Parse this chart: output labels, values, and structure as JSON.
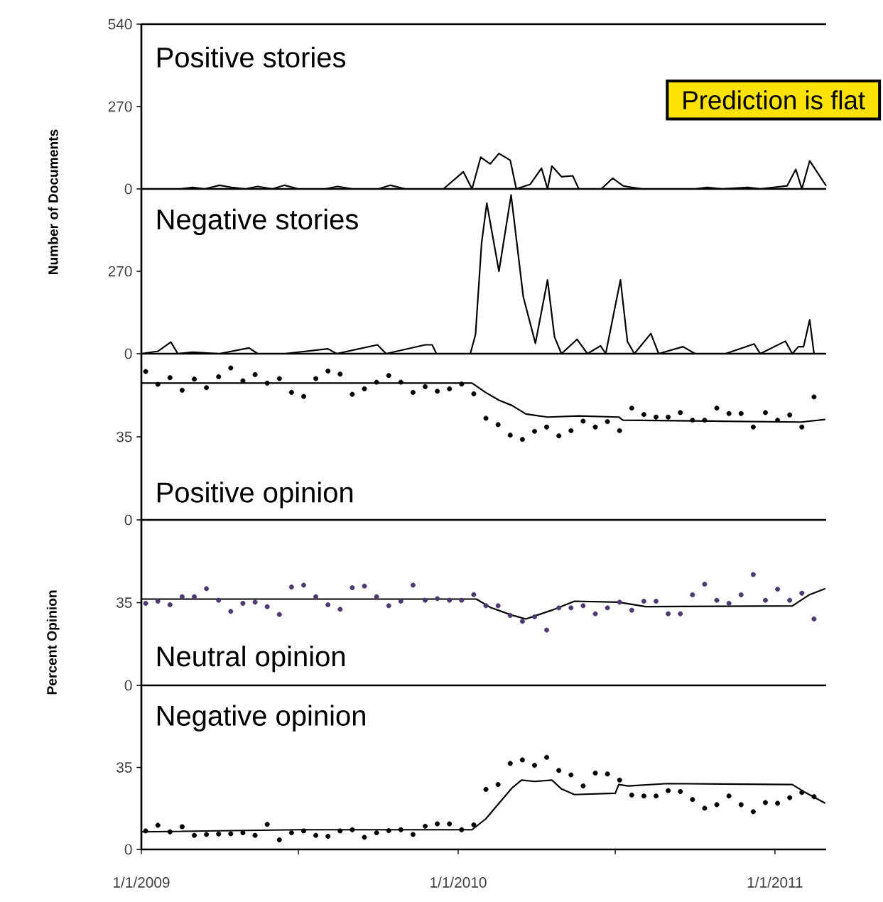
{
  "chart_data": [
    {
      "type": "line",
      "title": "Positive stories",
      "ylabel": "Number of Documents",
      "xlim": [
        "2009-01-01",
        "2011-03-01"
      ],
      "ylim": [
        0,
        540
      ],
      "yticks": [
        0,
        270,
        540
      ],
      "tick_labels": "y",
      "annotations": [
        "Prediction is flat"
      ],
      "series": [
        {
          "color": "#000000",
          "x": [
            "2009-01-01",
            "2009-02-15",
            "2009-03-01",
            "2009-03-15",
            "2009-04-01",
            "2009-04-15",
            "2009-05-01",
            "2009-05-15",
            "2009-06-01",
            "2009-06-15",
            "2009-07-01",
            "2009-08-01",
            "2009-08-15",
            "2009-09-01",
            "2009-10-01",
            "2009-10-15",
            "2009-11-01",
            "2009-12-15",
            "2010-01-07",
            "2010-01-17",
            "2010-01-27",
            "2010-02-07",
            "2010-02-17",
            "2010-03-02",
            "2010-03-09",
            "2010-03-25",
            "2010-04-07",
            "2010-04-14",
            "2010-04-19",
            "2010-04-30",
            "2010-05-13",
            "2010-05-20",
            "2010-06-15",
            "2010-06-28",
            "2010-07-10",
            "2010-07-20",
            "2010-08-01",
            "2010-10-01",
            "2010-10-15",
            "2010-11-01",
            "2010-12-01",
            "2010-12-15",
            "2011-01-15",
            "2011-01-25",
            "2011-02-01",
            "2011-02-10",
            "2011-03-01"
          ],
          "values": [
            0,
            0,
            5,
            0,
            12,
            5,
            0,
            8,
            0,
            12,
            0,
            0,
            8,
            0,
            0,
            12,
            0,
            0,
            56,
            0,
            104,
            82,
            116,
            94,
            0,
            15,
            68,
            0,
            75,
            40,
            43,
            0,
            0,
            35,
            10,
            5,
            0,
            0,
            5,
            0,
            5,
            0,
            10,
            64,
            0,
            92,
            10
          ]
        }
      ]
    },
    {
      "type": "line",
      "title": "Negative stories",
      "xlim": [
        "2009-01-01",
        "2011-03-01"
      ],
      "ylim": [
        0,
        540
      ],
      "yticks": [
        0,
        270
      ],
      "tick_labels": "y",
      "series": [
        {
          "color": "#000000",
          "x": [
            "2009-01-01",
            "2009-01-20",
            "2009-02-04",
            "2009-02-12",
            "2009-03-01",
            "2009-04-01",
            "2009-05-05",
            "2009-05-15",
            "2009-06-15",
            "2009-08-04",
            "2009-08-14",
            "2009-09-30",
            "2009-10-10",
            "2009-11-24",
            "2009-12-02",
            "2009-12-07",
            "2010-01-15",
            "2010-01-21",
            "2010-01-28",
            "2010-02-03",
            "2010-02-17",
            "2010-03-03",
            "2010-03-17",
            "2010-03-31",
            "2010-04-14",
            "2010-04-22",
            "2010-04-30",
            "2010-05-18",
            "2010-05-30",
            "2010-06-14",
            "2010-06-20",
            "2010-07-07",
            "2010-07-15",
            "2010-07-23",
            "2010-08-11",
            "2010-08-20",
            "2010-09-17",
            "2010-10-01",
            "2010-11-05",
            "2010-12-08",
            "2010-12-15",
            "2011-01-13",
            "2011-01-21",
            "2011-01-28",
            "2011-02-03",
            "2011-02-10",
            "2011-02-15",
            "2011-03-01"
          ],
          "values": [
            0,
            8,
            38,
            0,
            5,
            0,
            19,
            0,
            0,
            16,
            0,
            29,
            0,
            29,
            29,
            0,
            0,
            63,
            362,
            493,
            270,
            520,
            187,
            34,
            242,
            55,
            0,
            47,
            0,
            26,
            0,
            242,
            40,
            0,
            66,
            0,
            23,
            0,
            0,
            32,
            0,
            41,
            0,
            23,
            23,
            111,
            0,
            0
          ]
        }
      ]
    },
    {
      "type": "scatter",
      "title": "Positive opinion",
      "xlim": [
        "2009-01-01",
        "2011-03-01"
      ],
      "ylim": [
        0,
        70
      ],
      "yticks": [
        0,
        35
      ],
      "tick_labels": "y",
      "x": [
        "2009-01-06",
        "2009-01-20",
        "2009-02-03",
        "2009-02-17",
        "2009-03-03",
        "2009-03-17",
        "2009-03-31",
        "2009-04-14",
        "2009-04-28",
        "2009-05-12",
        "2009-05-26",
        "2009-06-09",
        "2009-06-23",
        "2009-07-07",
        "2009-07-21",
        "2009-08-04",
        "2009-08-18",
        "2009-09-01",
        "2009-09-15",
        "2009-09-29",
        "2009-10-13",
        "2009-10-27",
        "2009-11-10",
        "2009-11-24",
        "2009-12-08",
        "2009-12-22",
        "2010-01-05",
        "2010-01-19",
        "2010-02-02",
        "2010-02-16",
        "2010-03-02",
        "2010-03-16",
        "2010-03-30",
        "2010-04-13",
        "2010-04-27",
        "2010-05-11",
        "2010-05-25",
        "2010-06-08",
        "2010-06-22",
        "2010-07-06",
        "2010-07-20",
        "2010-08-03",
        "2010-08-17",
        "2010-08-31",
        "2010-09-14",
        "2010-09-28",
        "2010-10-12",
        "2010-10-26",
        "2010-11-09",
        "2010-11-23",
        "2010-12-07",
        "2010-12-21",
        "2011-01-04",
        "2011-01-18",
        "2011-02-01",
        "2011-02-15"
      ],
      "series": [
        {
          "type": "line",
          "color": "#000000",
          "x": [
            "2009-01-01",
            "2010-01-17",
            "2010-02-02",
            "2010-02-17",
            "2010-03-04",
            "2010-03-20",
            "2010-04-14",
            "2010-05-20",
            "2010-07-05",
            "2010-07-10",
            "2010-10-21",
            "2011-01-31",
            "2011-02-28"
          ],
          "values": [
            57.6,
            57.6,
            53.6,
            50.4,
            48.2,
            44.6,
            43.3,
            43.8,
            43.3,
            42.0,
            41.6,
            41.2,
            42.3
          ]
        },
        {
          "type": "scatter",
          "color": "#000000",
          "values": [
            62.5,
            57.1,
            59.9,
            54.6,
            59.3,
            55.7,
            60.3,
            64.0,
            58.6,
            61.2,
            57.6,
            59.5,
            53.7,
            52.0,
            59.5,
            62.7,
            61.4,
            52.9,
            55.2,
            58.0,
            60.8,
            58.0,
            53.7,
            56.1,
            54.2,
            55.2,
            57.2,
            53.1,
            42.8,
            40.1,
            35.7,
            33.9,
            37.3,
            39.1,
            35.4,
            37.6,
            41.6,
            39.1,
            41.4,
            37.6,
            47.1,
            44.4,
            43.3,
            43.3,
            45.2,
            42.0,
            42.0,
            47.1,
            44.8,
            44.8,
            39.1,
            45.2,
            42.0,
            44.2,
            39.1,
            51.8
          ]
        }
      ]
    },
    {
      "type": "scatter",
      "title": "Neutral opinion",
      "ylabel": "Percent Opinion",
      "xlim": [
        "2009-01-01",
        "2011-03-01"
      ],
      "ylim": [
        0,
        70
      ],
      "yticks": [
        0,
        35
      ],
      "tick_labels": "y",
      "x": [
        "2009-01-06",
        "2009-01-20",
        "2009-02-03",
        "2009-02-17",
        "2009-03-03",
        "2009-03-17",
        "2009-03-31",
        "2009-04-14",
        "2009-04-28",
        "2009-05-12",
        "2009-05-26",
        "2009-06-09",
        "2009-06-23",
        "2009-07-07",
        "2009-07-21",
        "2009-08-04",
        "2009-08-18",
        "2009-09-01",
        "2009-09-15",
        "2009-09-29",
        "2009-10-13",
        "2009-10-27",
        "2009-11-10",
        "2009-11-24",
        "2009-12-08",
        "2009-12-22",
        "2010-01-05",
        "2010-01-19",
        "2010-02-02",
        "2010-02-16",
        "2010-03-02",
        "2010-03-16",
        "2010-03-30",
        "2010-04-13",
        "2010-04-27",
        "2010-05-11",
        "2010-05-25",
        "2010-06-08",
        "2010-06-22",
        "2010-07-06",
        "2010-07-20",
        "2010-08-03",
        "2010-08-17",
        "2010-08-31",
        "2010-09-14",
        "2010-09-28",
        "2010-10-12",
        "2010-10-26",
        "2010-11-09",
        "2010-11-23",
        "2010-12-07",
        "2010-12-21",
        "2011-01-04",
        "2011-01-18",
        "2011-02-01",
        "2011-02-15"
      ],
      "series": [
        {
          "type": "line",
          "color": "#000000",
          "x": [
            "2009-01-01",
            "2010-01-22",
            "2010-02-07",
            "2010-03-04",
            "2010-03-20",
            "2010-04-19",
            "2010-05-15",
            "2010-07-05",
            "2010-08-05",
            "2011-01-21",
            "2011-02-10",
            "2011-02-28"
          ],
          "values": [
            36.5,
            36.5,
            33.0,
            29.7,
            28.1,
            31.8,
            35.6,
            35.2,
            33.3,
            33.6,
            38.4,
            40.9
          ]
        },
        {
          "type": "scatter",
          "color": "#4b3b6e",
          "values": [
            34.7,
            35.6,
            34.1,
            37.5,
            37.5,
            40.9,
            36.0,
            31.3,
            34.7,
            35.2,
            33.3,
            30.0,
            41.6,
            42.4,
            37.5,
            34.1,
            32.2,
            41.3,
            42.0,
            37.5,
            33.7,
            35.6,
            42.4,
            36.0,
            36.7,
            36.0,
            36.0,
            38.4,
            33.7,
            33.7,
            29.6,
            27.1,
            29.0,
            23.4,
            32.8,
            32.8,
            33.7,
            30.3,
            32.8,
            35.2,
            31.8,
            35.6,
            35.6,
            30.3,
            30.3,
            38.3,
            42.8,
            36.0,
            34.7,
            38.3,
            46.9,
            36.0,
            40.7,
            36.0,
            39.0,
            28.1
          ]
        }
      ]
    },
    {
      "type": "scatter",
      "title": "Negative opinion",
      "xlim": [
        "2009-01-01",
        "2011-03-01"
      ],
      "ylim": [
        0,
        70
      ],
      "yticks": [
        0,
        35
      ],
      "xticks": [
        {
          "value": "2009-01-01",
          "label": "1/1/2009"
        },
        {
          "value": "2009-07-01",
          "label": null
        },
        {
          "value": "2010-01-01",
          "label": "1/1/2010"
        },
        {
          "value": "2010-07-01",
          "label": null
        },
        {
          "value": "2011-01-01",
          "label": "1/1/2011"
        }
      ],
      "x": [
        "2009-01-06",
        "2009-01-20",
        "2009-02-03",
        "2009-02-17",
        "2009-03-03",
        "2009-03-17",
        "2009-03-31",
        "2009-04-14",
        "2009-04-28",
        "2009-05-12",
        "2009-05-26",
        "2009-06-09",
        "2009-06-23",
        "2009-07-07",
        "2009-07-21",
        "2009-08-04",
        "2009-08-18",
        "2009-09-01",
        "2009-09-15",
        "2009-09-29",
        "2009-10-13",
        "2009-10-27",
        "2009-11-10",
        "2009-11-24",
        "2009-12-08",
        "2009-12-22",
        "2010-01-05",
        "2010-01-19",
        "2010-02-02",
        "2010-02-16",
        "2010-03-02",
        "2010-03-16",
        "2010-03-30",
        "2010-04-13",
        "2010-04-27",
        "2010-05-11",
        "2010-05-25",
        "2010-06-08",
        "2010-06-22",
        "2010-07-06",
        "2010-07-20",
        "2010-08-03",
        "2010-08-17",
        "2010-08-31",
        "2010-09-14",
        "2010-09-28",
        "2010-10-12",
        "2010-10-26",
        "2010-11-09",
        "2010-11-23",
        "2010-12-07",
        "2010-12-21",
        "2011-01-04",
        "2011-01-18",
        "2011-02-01",
        "2011-02-15"
      ],
      "series": [
        {
          "type": "line",
          "color": "#000000",
          "x": [
            "2009-01-01",
            "2009-07-01",
            "2010-01-17",
            "2010-02-02",
            "2010-02-17",
            "2010-03-04",
            "2010-03-15",
            "2010-03-30",
            "2010-04-19",
            "2010-04-30",
            "2010-05-15",
            "2010-07-01",
            "2010-07-05",
            "2010-07-16",
            "2010-08-30",
            "2011-01-21",
            "2011-02-05",
            "2011-02-28"
          ],
          "values": [
            7.5,
            8.4,
            8.4,
            13.1,
            19.7,
            26.2,
            29.6,
            29.0,
            29.6,
            25.8,
            23.4,
            24.0,
            27.7,
            27.1,
            28.1,
            27.7,
            24.3,
            19.7
          ]
        },
        {
          "type": "scatter",
          "color": "#000000",
          "values": [
            7.9,
            10.3,
            7.5,
            9.7,
            6.0,
            6.4,
            6.6,
            6.7,
            7.1,
            6.0,
            10.7,
            4.1,
            7.1,
            7.9,
            6.0,
            5.6,
            7.9,
            8.4,
            5.2,
            7.1,
            8.0,
            8.4,
            6.4,
            9.9,
            10.9,
            10.9,
            8.4,
            10.5,
            25.6,
            27.7,
            36.7,
            38.2,
            35.9,
            39.3,
            33.7,
            31.8,
            27.1,
            32.6,
            32.2,
            29.6,
            23.2,
            22.8,
            22.8,
            25.1,
            24.7,
            21.3,
            17.6,
            19.1,
            22.8,
            19.1,
            16.1,
            20.0,
            19.7,
            22.1,
            24.3,
            22.5
          ]
        }
      ]
    }
  ]
}
